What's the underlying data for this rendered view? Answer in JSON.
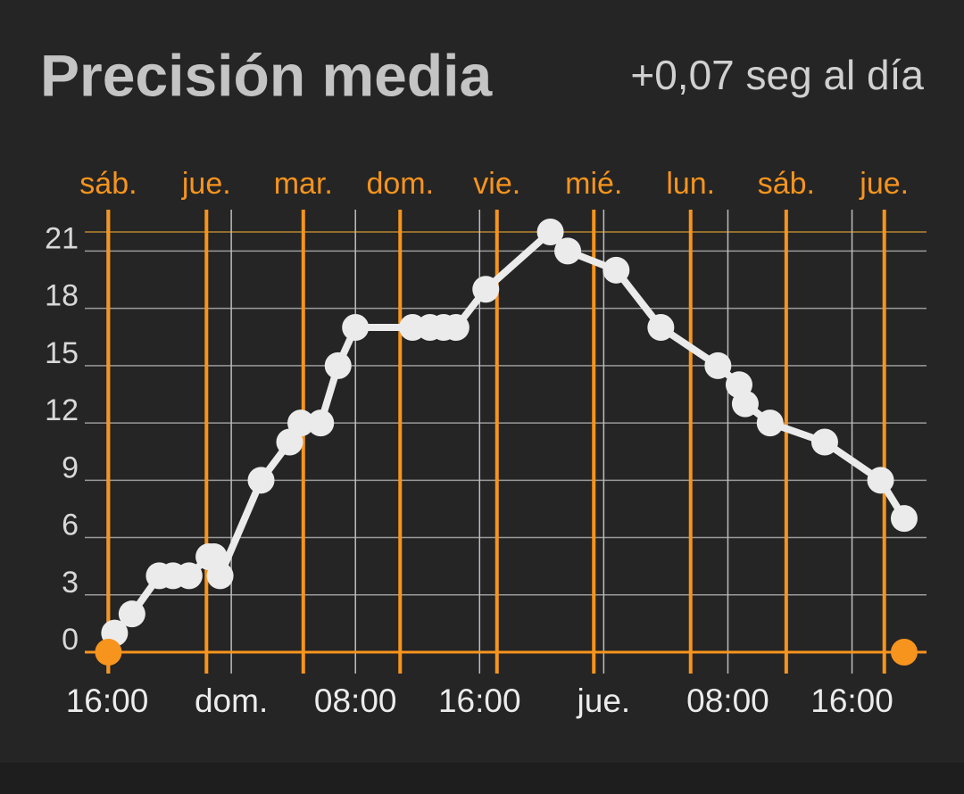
{
  "chart_data": {
    "type": "line",
    "title": "Precisión media",
    "subtitle": "+0,07 seg al día",
    "x": [
      0.06,
      0.2,
      0.42,
      0.53,
      0.66,
      0.82,
      0.86,
      0.91,
      1.24,
      1.47,
      1.56,
      1.72,
      1.86,
      2.0,
      2.46,
      2.6,
      2.71,
      2.81,
      3.05,
      3.57,
      3.71,
      4.1,
      4.46,
      4.92,
      5.09,
      5.14,
      5.34,
      5.78,
      6.23,
      6.42
    ],
    "series": [
      {
        "color": "#ebebeb",
        "values": [
          1,
          2,
          4,
          4,
          4,
          5,
          5,
          4,
          9,
          11,
          12,
          12,
          15,
          17,
          17,
          17,
          17,
          17,
          19,
          22,
          21,
          20,
          17,
          15,
          14,
          13,
          12,
          11,
          9,
          7
        ]
      }
    ],
    "markers": {
      "x": [
        0.01,
        6.42
      ],
      "values": [
        0,
        0
      ],
      "color": "#f7941d"
    },
    "max_line": 22,
    "xlim": [
      -0.18,
      6.6
    ],
    "ylim": [
      0,
      22
    ],
    "yticks": [
      0,
      3,
      6,
      9,
      12,
      15,
      18,
      21
    ],
    "xticks": [
      {
        "value": 0,
        "label": "16:00"
      },
      {
        "value": 1,
        "label": "dom."
      },
      {
        "value": 2,
        "label": "08:00"
      },
      {
        "value": 3,
        "label": "16:00"
      },
      {
        "value": 4,
        "label": "jue."
      },
      {
        "value": 5,
        "label": "08:00"
      },
      {
        "value": 6,
        "label": "16:00"
      }
    ],
    "x2ticks": [
      {
        "value": 0.01,
        "label": "sáb."
      },
      {
        "value": 0.8,
        "label": "jue."
      },
      {
        "value": 1.58,
        "label": "mar."
      },
      {
        "value": 2.36,
        "label": "dom."
      },
      {
        "value": 3.14,
        "label": "vie."
      },
      {
        "value": 3.92,
        "label": "mié."
      },
      {
        "value": 4.7,
        "label": "lun."
      },
      {
        "value": 5.47,
        "label": "sáb."
      },
      {
        "value": 6.26,
        "label": "jue."
      }
    ],
    "x2_color": "#f7941d",
    "grid": true
  }
}
